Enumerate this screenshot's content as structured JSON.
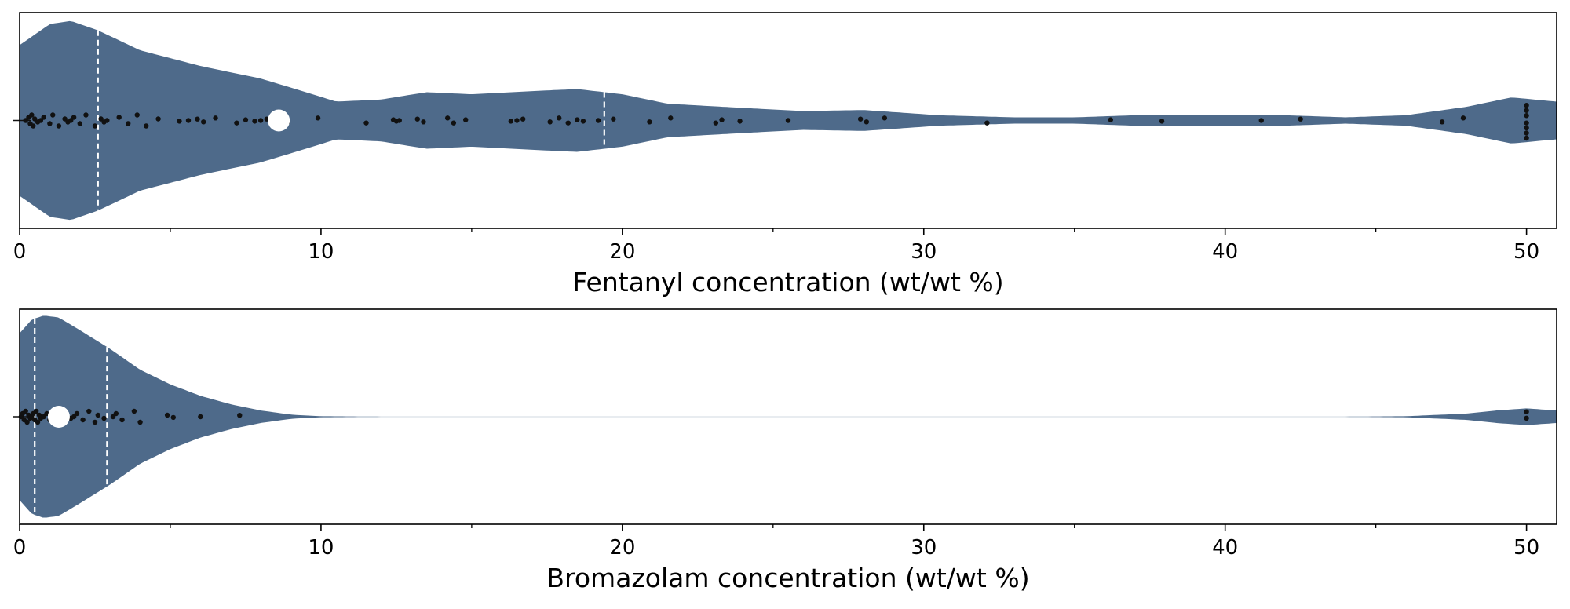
{
  "chart_data": [
    {
      "type": "violin",
      "xlabel": "Fentanyl concentration (wt/wt %)",
      "xlim": [
        0,
        51
      ],
      "xticks": [
        0,
        10,
        20,
        30,
        40,
        50
      ],
      "xtick_labels": [
        "0",
        "10",
        "20",
        "30",
        "40",
        "50"
      ],
      "minor_xticks": [
        5,
        15,
        25,
        35,
        45
      ],
      "ylabel": "",
      "grid": false,
      "colors": {
        "violin": "#4e6a8a",
        "points": "#111111",
        "mean_marker": "#ffffff",
        "quartile_lines": "#ffffff"
      },
      "mean": 8.6,
      "quartiles": [
        2.6,
        19.4
      ],
      "density": [
        [
          0,
          0.72
        ],
        [
          1,
          0.92
        ],
        [
          1.7,
          0.95
        ],
        [
          2.6,
          0.86
        ],
        [
          4,
          0.67
        ],
        [
          6,
          0.52
        ],
        [
          8,
          0.4
        ],
        [
          9.5,
          0.27
        ],
        [
          10.5,
          0.18
        ],
        [
          12,
          0.2
        ],
        [
          13.5,
          0.27
        ],
        [
          15,
          0.25
        ],
        [
          17,
          0.28
        ],
        [
          18.5,
          0.3
        ],
        [
          20,
          0.25
        ],
        [
          21.5,
          0.16
        ],
        [
          24,
          0.12
        ],
        [
          26,
          0.09
        ],
        [
          28,
          0.1
        ],
        [
          29,
          0.08
        ],
        [
          30.5,
          0.05
        ],
        [
          33,
          0.03
        ],
        [
          35,
          0.03
        ],
        [
          37,
          0.05
        ],
        [
          40,
          0.05
        ],
        [
          42,
          0.05
        ],
        [
          44,
          0.03
        ],
        [
          46,
          0.05
        ],
        [
          48,
          0.13
        ],
        [
          49.5,
          0.22
        ],
        [
          51,
          0.18
        ]
      ],
      "points": [
        0.2,
        0.3,
        0.35,
        0.4,
        0.45,
        0.5,
        0.6,
        0.7,
        0.8,
        1.0,
        1.1,
        1.3,
        1.5,
        1.6,
        1.7,
        1.8,
        2.0,
        2.2,
        2.5,
        2.7,
        2.8,
        2.9,
        3.3,
        3.6,
        3.9,
        4.2,
        4.6,
        5.3,
        5.6,
        5.9,
        6.1,
        6.5,
        7.2,
        7.5,
        7.8,
        8.0,
        8.2,
        8.9,
        9.9,
        11.5,
        12.4,
        12.5,
        12.6,
        13.2,
        13.4,
        14.2,
        14.4,
        14.8,
        16.3,
        16.5,
        16.7,
        17.6,
        17.9,
        18.2,
        18.5,
        18.7,
        19.2,
        19.7,
        20.9,
        21.6,
        23.1,
        23.3,
        23.9,
        25.5,
        27.9,
        28.1,
        28.7,
        32.1,
        36.2,
        37.9,
        41.2,
        42.5,
        47.2,
        47.9,
        50,
        50,
        50,
        50,
        50,
        50,
        50
      ]
    },
    {
      "type": "violin",
      "xlabel": "Bromazolam concentration (wt/wt %)",
      "xlim": [
        0,
        51
      ],
      "xticks": [
        0,
        10,
        20,
        30,
        40,
        50
      ],
      "xtick_labels": [
        "0",
        "10",
        "20",
        "30",
        "40",
        "50"
      ],
      "minor_xticks": [
        5,
        15,
        25,
        35,
        45
      ],
      "ylabel": "",
      "grid": false,
      "colors": {
        "violin": "#4e6a8a",
        "points": "#111111",
        "mean_marker": "#ffffff",
        "quartile_lines": "#ffffff"
      },
      "mean": 1.3,
      "quartiles": [
        0.5,
        2.9
      ],
      "density": [
        [
          0,
          0.8
        ],
        [
          0.4,
          0.93
        ],
        [
          0.8,
          0.97
        ],
        [
          1.3,
          0.95
        ],
        [
          2,
          0.83
        ],
        [
          3,
          0.65
        ],
        [
          4,
          0.45
        ],
        [
          5,
          0.31
        ],
        [
          6,
          0.2
        ],
        [
          7,
          0.12
        ],
        [
          8,
          0.06
        ],
        [
          9,
          0.02
        ],
        [
          10,
          0.005
        ],
        [
          12,
          0.001
        ],
        [
          44,
          0.001
        ],
        [
          46,
          0.005
        ],
        [
          48,
          0.03
        ],
        [
          49,
          0.06
        ],
        [
          50,
          0.08
        ],
        [
          51,
          0.06
        ]
      ],
      "points": [
        0.05,
        0.1,
        0.15,
        0.2,
        0.25,
        0.3,
        0.35,
        0.4,
        0.45,
        0.5,
        0.55,
        0.6,
        0.65,
        0.7,
        0.8,
        0.9,
        1.0,
        1.1,
        1.2,
        1.5,
        1.7,
        1.8,
        1.9,
        2.1,
        2.3,
        2.5,
        2.6,
        2.8,
        3.1,
        3.2,
        3.4,
        3.8,
        4.0,
        4.9,
        5.1,
        6.0,
        7.3,
        50,
        50
      ]
    }
  ]
}
